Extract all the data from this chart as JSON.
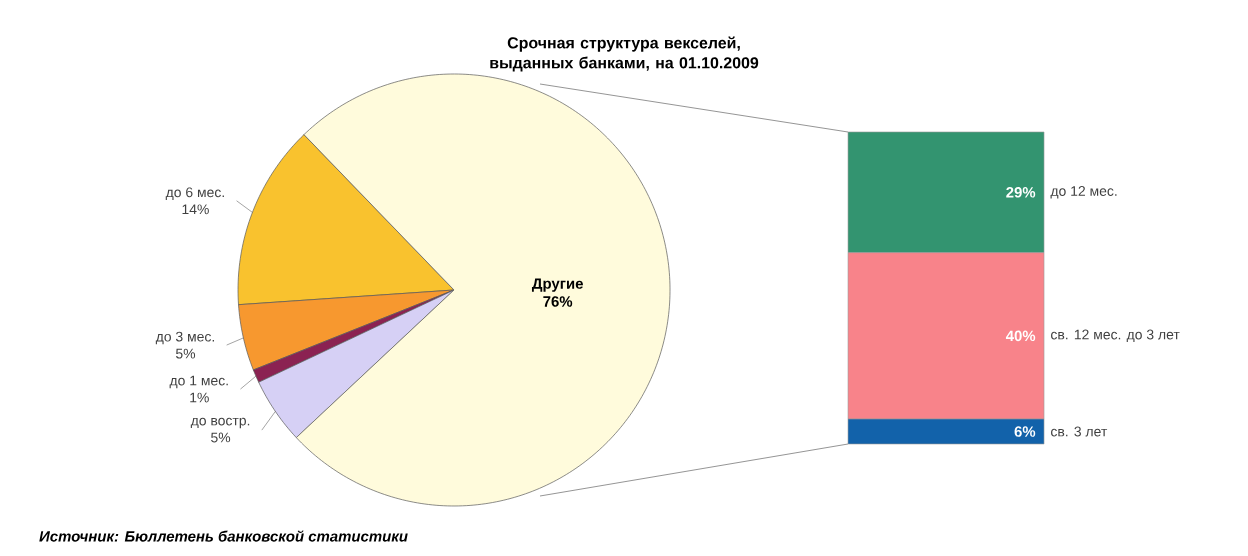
{
  "chart_data": [
    {
      "type": "pie",
      "title": "Срочная структура векселей, выданных банками, на 01.10.2009",
      "categories": [
        "до 6 мес.",
        "до 3 мес.",
        "до 1 мес.",
        "до востр.",
        "Другие"
      ],
      "values": [
        14,
        5,
        1,
        5,
        76
      ],
      "value_labels": [
        "14%",
        "5%",
        "1%",
        "5%",
        "76%"
      ],
      "colors": [
        "#f9c22e",
        "#f7982f",
        "#8b2252",
        "#d6d0f5",
        "#fffbdc"
      ],
      "annotations": [
        "Источник: Бюллетень банковской статистики"
      ]
    },
    {
      "type": "bar",
      "stacked": true,
      "categories": [
        null
      ],
      "series": [
        {
          "name": "св. 3 лет",
          "color": "#1262aa",
          "values": [
            6
          ],
          "value_labels": [
            "6%"
          ]
        },
        {
          "name": "св. 12 мес. до 3 лет",
          "color": "#f8838a",
          "values": [
            40
          ],
          "value_labels": [
            "40%"
          ]
        },
        {
          "name": "до 12 мес.",
          "color": "#339470",
          "values": [
            29
          ],
          "value_labels": [
            "29%"
          ]
        }
      ]
    }
  ]
}
